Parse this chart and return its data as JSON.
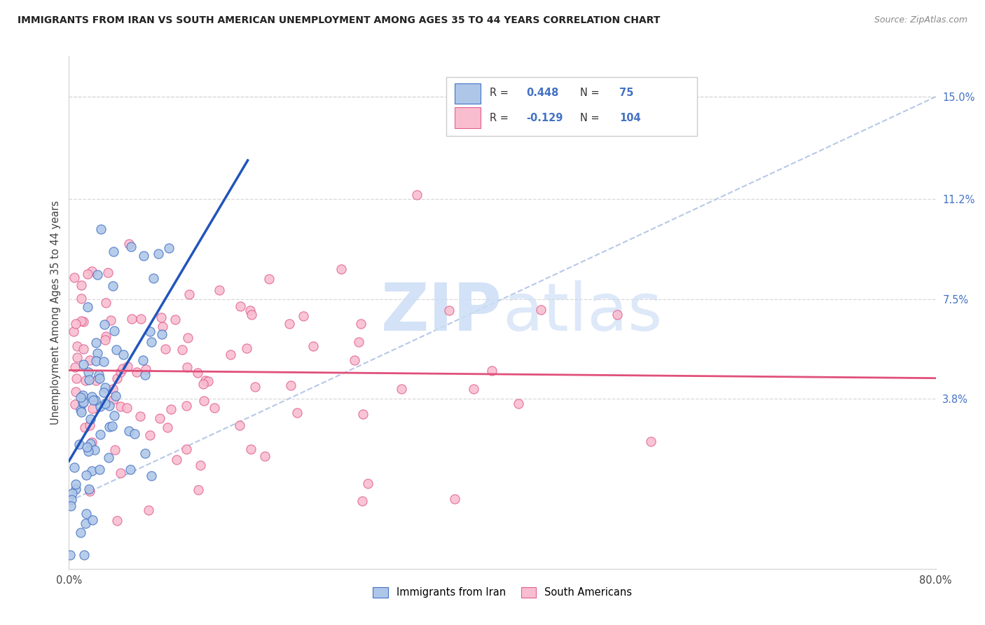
{
  "title": "IMMIGRANTS FROM IRAN VS SOUTH AMERICAN UNEMPLOYMENT AMONG AGES 35 TO 44 YEARS CORRELATION CHART",
  "source": "Source: ZipAtlas.com",
  "ylabel": "Unemployment Among Ages 35 to 44 years",
  "xlim": [
    0.0,
    0.8
  ],
  "ylim": [
    -0.025,
    0.165
  ],
  "y_tick_right_labels": [
    "3.8%",
    "7.5%",
    "11.2%",
    "15.0%"
  ],
  "y_tick_right_values": [
    0.038,
    0.075,
    0.112,
    0.15
  ],
  "iran_color": "#aec6e8",
  "iran_edge_color": "#4472c4",
  "south_color": "#f9bdd0",
  "south_edge_color": "#e06090",
  "trend_iran_color": "#2255bb",
  "trend_south_color": "#e0507a",
  "diagonal_color": "#b8c8e8",
  "grid_color": "#d8d8d8",
  "background_color": "#ffffff",
  "watermark_color": "#ccddf5",
  "legend_text_color": "#333333",
  "legend_value_color": "#4472c4",
  "right_tick_color": "#4472c4"
}
